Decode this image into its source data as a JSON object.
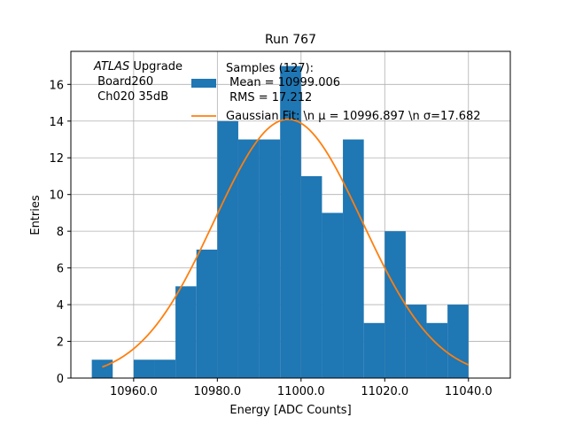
{
  "chart_data": {
    "type": "bar",
    "title": "Run 767",
    "xlabel": "Energy [ADC Counts]",
    "ylabel": "Entries",
    "xlim": [
      10945,
      11050
    ],
    "ylim": [
      0,
      17.8
    ],
    "grid": true,
    "xticks": [
      10960,
      10980,
      11000,
      11020,
      11040
    ],
    "xtick_labels": [
      "10960.0",
      "10980.0",
      "11000.0",
      "11020.0",
      "11040.0"
    ],
    "yticks": [
      0,
      2,
      4,
      6,
      8,
      10,
      12,
      14,
      16
    ],
    "yticks_labels": [
      "0",
      "2",
      "4",
      "6",
      "8",
      "10",
      "12",
      "14",
      "16"
    ],
    "bin_width": 5,
    "bin_edges_start": [
      10950,
      10955,
      10960,
      10965,
      10970,
      10975,
      10980,
      10985,
      10990,
      10995,
      11000,
      11005,
      11010,
      11015,
      11020,
      11025,
      11030,
      11035
    ],
    "counts": [
      1,
      0,
      1,
      1,
      5,
      7,
      14,
      13,
      13,
      17,
      11,
      9,
      13,
      3,
      8,
      4,
      3,
      4
    ],
    "fit": {
      "name": "Gaussian Fit",
      "mu": 10996.897,
      "sigma": 17.682,
      "amplitude": 14.1,
      "x_range": [
        10952.5,
        11040
      ]
    },
    "series_colors": {
      "hist": "#1f77b4",
      "fit": "#ff7f0e"
    },
    "legend": {
      "location": "top-center",
      "hist_lines": [
        "Samples (127):",
        " Mean = 10999.006",
        " RMS = 17.212"
      ],
      "fit_label": "Gaussian Fit: \\n μ = 10996.897 \\n σ=17.682"
    },
    "annotation": {
      "atlas": "ATLAS",
      "upgrade": " Upgrade",
      "lines": [
        " Board260",
        " Ch020 35dB"
      ]
    }
  }
}
